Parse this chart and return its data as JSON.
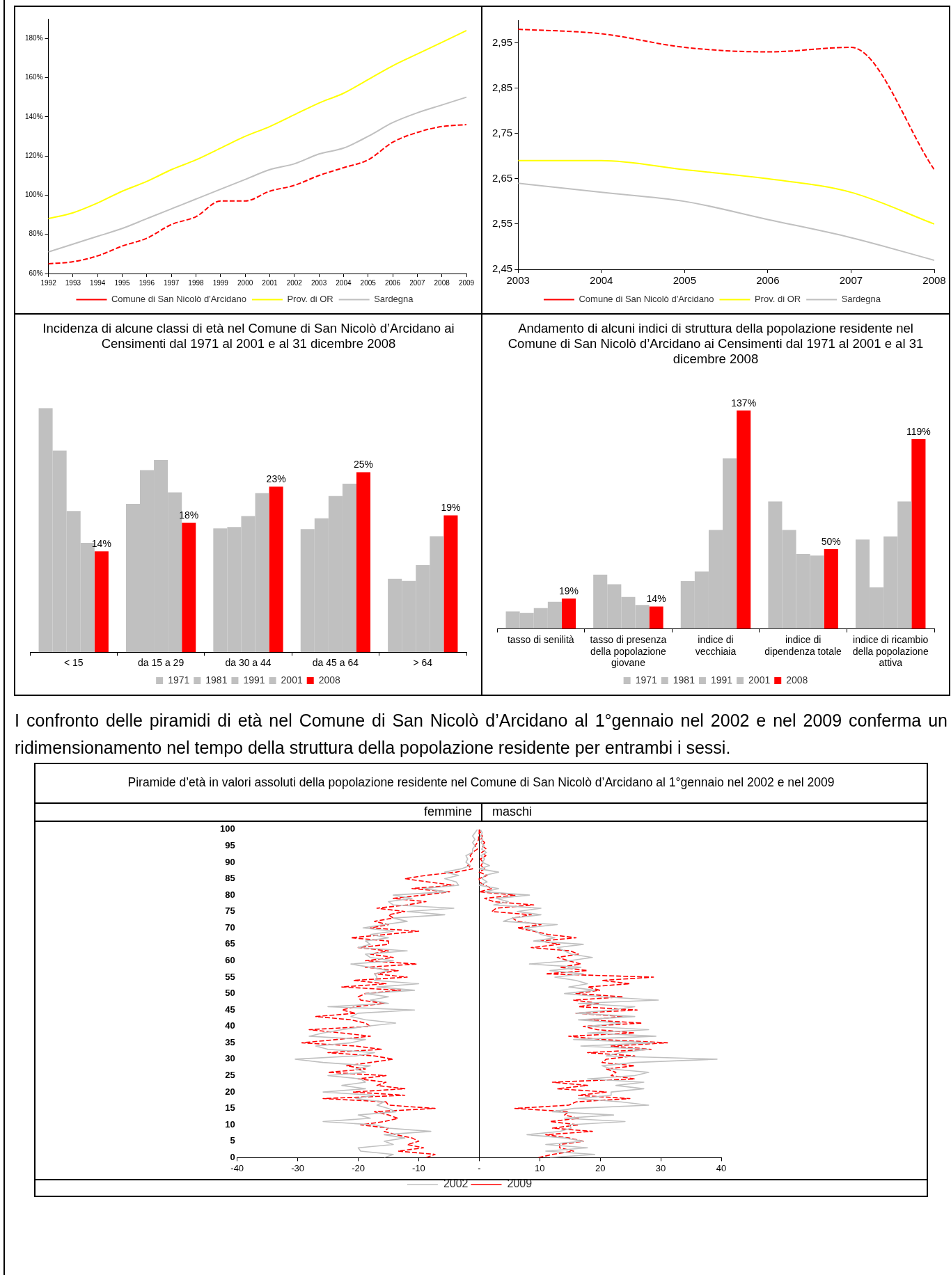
{
  "chart_data": [
    {
      "type": "line",
      "categories": [
        "1992",
        "1993",
        "1994",
        "1995",
        "1996",
        "1997",
        "1998",
        "1999",
        "2000",
        "2001",
        "2002",
        "2003",
        "2004",
        "2005",
        "2006",
        "2007",
        "2008",
        "2009"
      ],
      "series": [
        {
          "name": "Comune di San Nicolò d'Arcidano",
          "color": "#ff0000",
          "line_style": "dashed",
          "values": [
            65,
            66,
            69,
            74,
            78,
            85,
            89,
            97,
            97,
            102,
            105,
            110,
            114,
            118,
            127,
            132,
            135,
            136
          ]
        },
        {
          "name": "Prov. di OR",
          "color": "#ffff00",
          "line_style": "solid",
          "values": [
            88,
            91,
            96,
            102,
            107,
            113,
            118,
            124,
            130,
            135,
            141,
            147,
            152,
            159,
            166,
            172,
            178,
            184
          ]
        },
        {
          "name": "Sardegna",
          "color": "#c0c0c0",
          "line_style": "solid",
          "values": [
            71,
            75,
            79,
            83,
            88,
            93,
            98,
            103,
            108,
            113,
            116,
            121,
            124,
            130,
            137,
            142,
            146,
            150
          ]
        }
      ],
      "ylim": [
        60,
        190
      ],
      "yticks": [
        {
          "value": 60,
          "label": "60%"
        },
        {
          "value": 80,
          "label": "80%"
        },
        {
          "value": 100,
          "label": "100%"
        },
        {
          "value": 120,
          "label": "120%"
        },
        {
          "value": 140,
          "label": "140%"
        },
        {
          "value": 160,
          "label": "160%"
        },
        {
          "value": 180,
          "label": "180%"
        }
      ],
      "legend": "bottom"
    },
    {
      "type": "line",
      "x": [
        2003,
        2004,
        2005,
        2006,
        2007,
        2008
      ],
      "xlim": [
        2003,
        2008
      ],
      "xticks": [
        2003,
        2004,
        2005,
        2006,
        2007,
        2008
      ],
      "series": [
        {
          "name": "Comune di San Nicolò d'Arcidano",
          "color": "#ff0000",
          "line_style": "dashed",
          "values": [
            2.98,
            2.97,
            2.94,
            2.93,
            2.94,
            2.67
          ]
        },
        {
          "name": "Prov. di OR",
          "color": "#ffff00",
          "line_style": "solid",
          "values": [
            2.69,
            2.69,
            2.67,
            2.65,
            2.62,
            2.55
          ]
        },
        {
          "name": "Sardegna",
          "color": "#c0c0c0",
          "line_style": "solid",
          "values": [
            2.64,
            2.62,
            2.6,
            2.56,
            2.52,
            2.47
          ]
        }
      ],
      "ylim": [
        2.45,
        3.0
      ],
      "yticks": [
        {
          "value": 2.45,
          "label": "2,45"
        },
        {
          "value": 2.55,
          "label": "2,55"
        },
        {
          "value": 2.65,
          "label": "2,65"
        },
        {
          "value": 2.75,
          "label": "2,75"
        },
        {
          "value": 2.85,
          "label": "2,85"
        },
        {
          "value": 2.95,
          "label": "2,95"
        }
      ],
      "legend": "bottom"
    },
    {
      "type": "bar",
      "title": "Incidenza di alcune classi di età nel Comune di San Nicolò d’Arcidano ai Censimenti dal 1971 al 2001 e al 31 dicembre 2008",
      "categories": [
        "< 15",
        "da 15 a 29",
        "da 30 a 44",
        "da 45 a 64",
        "> 64"
      ],
      "series": [
        {
          "name": "1971",
          "color": "#c0c0c0",
          "values": [
            33.9,
            20.6,
            17.2,
            17.1,
            10.2
          ]
        },
        {
          "name": "1981",
          "color": "#c0c0c0",
          "values": [
            28,
            25.3,
            17.4,
            18.6,
            9.9
          ]
        },
        {
          "name": "1991",
          "color": "#c0c0c0",
          "values": [
            19.6,
            26.7,
            18.9,
            21.7,
            12.1
          ]
        },
        {
          "name": "2001",
          "color": "#c0c0c0",
          "values": [
            15.2,
            22.2,
            22.1,
            23.4,
            16.1
          ]
        },
        {
          "name": "2008",
          "color": "#ff0000",
          "values": [
            14,
            18,
            23,
            25,
            19
          ],
          "value_labels": [
            "14%",
            "18%",
            "23%",
            "25%",
            "19%"
          ]
        }
      ],
      "legend": "bottom"
    },
    {
      "type": "bar",
      "title": "Andamento di alcuni indici di struttura della popolazione residente nel Comune di San Nicolò d’Arcidano ai Censimenti dal 1971 al 2001 e al 31 dicembre 2008",
      "categories": [
        "tasso di senilità",
        "tasso di presenza della popolazione giovane",
        "indice di vecchiaia",
        "indice di dipendenza totale",
        "indice di ricambio della popolazione attiva"
      ],
      "series": [
        {
          "name": "1971",
          "color": "#c0c0c0",
          "values": [
            11,
            34,
            30,
            80,
            56
          ]
        },
        {
          "name": "1981",
          "color": "#c0c0c0",
          "values": [
            10,
            28,
            36,
            62,
            26
          ]
        },
        {
          "name": "1991",
          "color": "#c0c0c0",
          "values": [
            13,
            20,
            62,
            47,
            58
          ]
        },
        {
          "name": "2001",
          "color": "#c0c0c0",
          "values": [
            17,
            15,
            107,
            46,
            80
          ]
        },
        {
          "name": "2008",
          "color": "#ff0000",
          "values": [
            19,
            14,
            137,
            50,
            119
          ],
          "value_labels": [
            "19%",
            "14%",
            "137%",
            "50%",
            "119%"
          ]
        }
      ],
      "legend": "bottom"
    },
    {
      "type": "line",
      "title": "Piramide d’età in valori assoluti della popolazione residente nel Comune di San Nicolò d’Arcidano al 1°gennaio nel 2002 e nel 2009",
      "annotations": [
        "I confronto delle piramidi di età nel Comune di San Nicolò d’Arcidano al 1°gennaio nel 2002 e nel 2009 conferma un ridimensionamento nel tempo della struttura della popolazione residente per entrambi i sessi.",
        "femmine",
        "maschi"
      ],
      "series": [
        {
          "name": "2002",
          "color": "#c0c0c0",
          "line_style": "solid",
          "x": [
            -15.7,
            -14.2,
            -19.6,
            -20,
            -14.2,
            -15.7,
            -12.3,
            -15.7,
            -8,
            -15,
            -17.3,
            -25.8,
            -18,
            -20,
            -13.8,
            -15,
            -16.9,
            -15.7,
            -20.4,
            -17.3,
            -25.8,
            -18.8,
            -22.7,
            -18.8,
            -19.6,
            -25,
            -18.8,
            -20.4,
            -18,
            -25.8,
            -30.4,
            -20.4,
            -17.3,
            -25,
            -27,
            -21.2,
            -18.8,
            -28.1,
            -25.8,
            -22.7,
            -18.8,
            -13.8,
            -18.8,
            -21.2,
            -20,
            -10.7,
            -25,
            -15,
            -18,
            -15,
            -18.8,
            -10.7,
            -16.9,
            -10,
            -17.3,
            -16.9,
            -17.3,
            -15,
            -18,
            -21.2,
            -14.2,
            -18,
            -18.8,
            -11.9,
            -20,
            -18,
            -18.8,
            -15,
            -18,
            -14.2,
            -19.2,
            -15.7,
            -11.9,
            -14.2,
            -5.7,
            -11.9,
            -4.2,
            -14.2,
            -15,
            -11.1,
            -14.2,
            -5.3,
            -9.2,
            -3.4,
            -3.8,
            -5.7,
            -3.4,
            -5.7,
            -3,
            -1.5,
            -2.2,
            -1.9,
            -2.2,
            -1.1,
            -1.1,
            -0.7,
            -1.1,
            -0.7,
            -1.1,
            -0.7,
            -0.3,
            null,
            11.7,
            19.1,
            11,
            17.9,
            11,
            17.2,
            14.1,
            7.9,
            13.3,
            15.2,
            14.8,
            24.1,
            14.1,
            22.2,
            12.1,
            15.6,
            28,
            23.4,
            16.4,
            21.8,
            21.8,
            27.2,
            22.6,
            27.2,
            17.9,
            25.7,
            28,
            21.8,
            20.3,
            25.7,
            39.3,
            21,
            23.4,
            28,
            16.8,
            28.8,
            15.6,
            29.2,
            17.9,
            28,
            17.9,
            23.4,
            16.4,
            25.7,
            16,
            21.8,
            25.7,
            16.4,
            29.6,
            20.3,
            14.1,
            19.1,
            14.8,
            17.9,
            16,
            12.5,
            17.2,
            11.7,
            16.8,
            8.3,
            14.8,
            18.7,
            15.2,
            14.1,
            12.9,
            17.2,
            9,
            12.5,
            10.2,
            9.4,
            7.5,
            12.9,
            4,
            5.5,
            10.2,
            6.3,
            10.2,
            2.4,
            4.8,
            2.8,
            8.3,
            0.9,
            3.2,
            0,
            1.3,
            0.5,
            0.9,
            3.2,
            0,
            1.7,
            0.5,
            0.9,
            0.3,
            1.2,
            0.4,
            0.8,
            0.3,
            0.6,
            0.2,
            0.5,
            0.2
          ],
          "values": [
            0,
            1,
            2,
            3,
            4,
            5,
            6,
            7,
            8,
            9,
            10,
            11,
            12,
            13,
            14,
            15,
            16,
            17,
            18,
            19,
            20,
            21,
            22,
            23,
            24,
            25,
            26,
            27,
            28,
            29,
            30,
            31,
            32,
            33,
            34,
            35,
            36,
            37,
            38,
            39,
            40,
            41,
            42,
            43,
            44,
            45,
            46,
            47,
            48,
            49,
            50,
            51,
            52,
            53,
            54,
            55,
            56,
            57,
            58,
            59,
            60,
            61,
            62,
            63,
            64,
            65,
            66,
            67,
            68,
            69,
            70,
            71,
            72,
            73,
            74,
            75,
            76,
            77,
            78,
            79,
            80,
            81,
            82,
            83,
            84,
            85,
            86,
            87,
            88,
            89,
            90,
            91,
            92,
            93,
            94,
            95,
            96,
            97,
            98,
            99,
            100,
            null,
            0,
            1,
            2,
            3,
            4,
            5,
            6,
            7,
            8,
            9,
            10,
            11,
            12,
            13,
            14,
            15,
            16,
            17,
            18,
            19,
            20,
            21,
            22,
            23,
            24,
            25,
            26,
            27,
            28,
            29,
            30,
            31,
            32,
            33,
            34,
            35,
            36,
            37,
            38,
            39,
            40,
            41,
            42,
            43,
            44,
            45,
            46,
            47,
            48,
            49,
            50,
            51,
            52,
            53,
            54,
            55,
            56,
            57,
            58,
            59,
            60,
            61,
            62,
            63,
            64,
            65,
            66,
            67,
            68,
            69,
            70,
            71,
            72,
            73,
            74,
            75,
            76,
            77,
            78,
            79,
            80,
            81,
            82,
            83,
            84,
            85,
            86,
            87,
            88,
            89,
            90,
            91,
            92,
            93,
            94,
            95,
            96,
            97,
            98,
            99,
            100
          ]
        },
        {
          "name": "2009",
          "color": "#ff0000",
          "line_style": "dashed",
          "x": [
            -8.8,
            -7.3,
            -13.4,
            -9.2,
            -11.9,
            -10,
            -11.1,
            -13.8,
            -15.7,
            -15,
            -19.6,
            -15.7,
            -13.4,
            -15,
            -17.3,
            -7.3,
            -15,
            -15.4,
            -25.8,
            -12.3,
            -20.8,
            -12.3,
            -16.9,
            -15.4,
            -20,
            -15.4,
            -25,
            -18.8,
            -21.9,
            -18,
            -14.2,
            -17.3,
            -25,
            -16.1,
            -20.4,
            -29.3,
            -23.5,
            -18,
            -22.7,
            -28.1,
            -18,
            -18.8,
            -21.2,
            -27,
            -20.4,
            -22.7,
            -20.4,
            -15.7,
            -19.6,
            -20,
            -18.8,
            -13,
            -22.7,
            -15.4,
            -20.8,
            -11.9,
            -17.3,
            -13.4,
            -18.8,
            -10.3,
            -18.8,
            -14.2,
            -18,
            -15,
            -20,
            -15,
            -15,
            -21.2,
            -15.4,
            -10,
            -18,
            -15,
            -17.3,
            -14.2,
            -15,
            -12.3,
            -16.9,
            -11.9,
            -8.8,
            -14.2,
            -9.2,
            -4.9,
            -11.1,
            -4.2,
            -8.4,
            -12.3,
            -8.8,
            -3.8,
            -1.1,
            -1.9,
            -1.5,
            -1.1,
            -1.5,
            -1.1,
            -0.3,
            -0.7,
            -0.3,
            -0.1,
            -0.1,
            0,
            0,
            null,
            9.8,
            12.1,
            15.6,
            13.3,
            13.3,
            17.2,
            14.8,
            11,
            18.7,
            12.1,
            16.4,
            11.7,
            16.4,
            14.1,
            14.8,
            5.9,
            14.8,
            16,
            24.9,
            16.4,
            21,
            12.9,
            17.9,
            12.1,
            25.7,
            21.8,
            22.6,
            21,
            25.7,
            20.3,
            21,
            25.7,
            17.9,
            28.4,
            21.8,
            31.1,
            20.3,
            14.8,
            25.7,
            19.5,
            17.2,
            26.9,
            17.9,
            23.8,
            16,
            26.1,
            16.4,
            19.9,
            15.6,
            23.8,
            16,
            19.9,
            17.9,
            24.9,
            20.3,
            28.8,
            11,
            17.9,
            13.3,
            16.8,
            14.8,
            12.9,
            16.4,
            15,
            8.6,
            13.3,
            10.2,
            16,
            11.4,
            9,
            6.3,
            10.2,
            6.3,
            5.5,
            8.6,
            2.1,
            2.8,
            9,
            2.4,
            0.9,
            5.9,
            0,
            2.1,
            0.9,
            0,
            0,
            1.3,
            0,
            0.9,
            0.3,
            0.6,
            0.2,
            1.1,
            0.4,
            1.2,
            0.5,
            0.9,
            0.3,
            0.5,
            0.2,
            0
          ],
          "values": [
            0,
            1,
            2,
            3,
            4,
            5,
            6,
            7,
            8,
            9,
            10,
            11,
            12,
            13,
            14,
            15,
            16,
            17,
            18,
            19,
            20,
            21,
            22,
            23,
            24,
            25,
            26,
            27,
            28,
            29,
            30,
            31,
            32,
            33,
            34,
            35,
            36,
            37,
            38,
            39,
            40,
            41,
            42,
            43,
            44,
            45,
            46,
            47,
            48,
            49,
            50,
            51,
            52,
            53,
            54,
            55,
            56,
            57,
            58,
            59,
            60,
            61,
            62,
            63,
            64,
            65,
            66,
            67,
            68,
            69,
            70,
            71,
            72,
            73,
            74,
            75,
            76,
            77,
            78,
            79,
            80,
            81,
            82,
            83,
            84,
            85,
            86,
            87,
            88,
            89,
            90,
            91,
            92,
            93,
            94,
            95,
            96,
            97,
            98,
            99,
            100,
            null,
            0,
            1,
            2,
            3,
            4,
            5,
            6,
            7,
            8,
            9,
            10,
            11,
            12,
            13,
            14,
            15,
            16,
            17,
            18,
            19,
            20,
            21,
            22,
            23,
            24,
            25,
            26,
            27,
            28,
            29,
            30,
            31,
            32,
            33,
            34,
            35,
            36,
            37,
            38,
            39,
            40,
            41,
            42,
            43,
            44,
            45,
            46,
            47,
            48,
            49,
            50,
            51,
            52,
            53,
            54,
            55,
            56,
            57,
            58,
            59,
            60,
            61,
            62,
            63,
            64,
            65,
            66,
            67,
            68,
            69,
            70,
            71,
            72,
            73,
            74,
            75,
            76,
            77,
            78,
            79,
            80,
            81,
            82,
            83,
            84,
            85,
            86,
            87,
            88,
            89,
            90,
            91,
            92,
            93,
            94,
            95,
            96,
            97,
            98,
            99,
            100
          ]
        }
      ],
      "xlim": [
        -40,
        40
      ],
      "xticks": [
        -40,
        -30,
        -20,
        -10,
        {
          "value": 0,
          "label": "-"
        },
        10,
        20,
        30,
        40
      ],
      "ylim": [
        0,
        100
      ],
      "yticks": [
        0,
        5,
        10,
        15,
        20,
        25,
        30,
        35,
        40,
        45,
        50,
        55,
        60,
        65,
        70,
        75,
        80,
        85,
        90,
        95,
        100
      ],
      "legend": "bottom"
    }
  ]
}
